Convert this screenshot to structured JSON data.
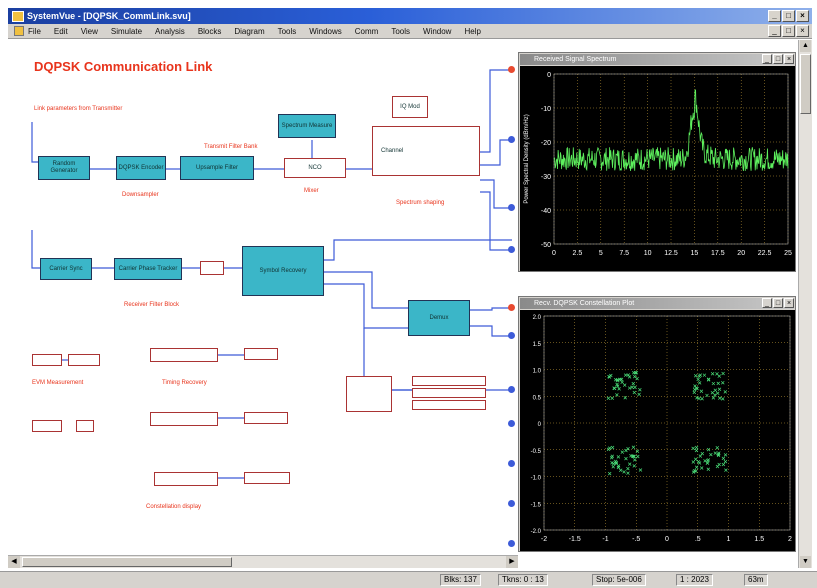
{
  "window": {
    "title": "SystemVue - [DQPSK_CommLink.svu]",
    "min_label": "_",
    "max_label": "□",
    "close_label": "×"
  },
  "menu": [
    "File",
    "Edit",
    "View",
    "Simulate",
    "Analysis",
    "Blocks",
    "Diagram",
    "Tools",
    "Windows",
    "Comm",
    "Tools",
    "Window",
    "Help"
  ],
  "diagram": {
    "title": "DQPSK Communication Link",
    "subtitle": "Link parameters from Transmitter",
    "blocks": [
      {
        "id": "b1",
        "label": "Random\nGenerator"
      },
      {
        "id": "b2",
        "label": "DQPSK\nEncoder"
      },
      {
        "id": "b3",
        "label": "Upsample\nFilter"
      },
      {
        "id": "b4",
        "label": "Spectrum\nMeasure"
      },
      {
        "id": "b5",
        "label": "NCO"
      },
      {
        "id": "b6",
        "label": "IQ Mod"
      },
      {
        "id": "b7",
        "label": "Channel"
      },
      {
        "id": "b8",
        "label": "Carrier\nSync"
      },
      {
        "id": "b9",
        "label": "Carrier Phase\nTracker"
      },
      {
        "id": "b10",
        "label": "Symbol\nRecovery"
      },
      {
        "id": "b11",
        "label": "Demux"
      }
    ],
    "labels": [
      "Transmit Filter Bank",
      "Mixer",
      "Downsampler",
      "Spectrum shaping",
      "Receiver Filter Block",
      "EVM Measurement",
      "Timing Recovery",
      "Constellation display"
    ]
  },
  "spectrum_plot": {
    "title": "Received Signal Spectrum",
    "ylabel": "Power Spectral Density (dBm/Hz)",
    "x_ticks": [
      "0",
      "2.5",
      "5",
      "7.5",
      "10",
      "12.5",
      "15",
      "17.5",
      "20",
      "22.5",
      "25"
    ],
    "y_ticks": [
      "0",
      "-10",
      "-20",
      "-30",
      "-40",
      "-50"
    ],
    "line_color": "#5ef05e",
    "grid_color": "#c9a23a"
  },
  "constellation_plot": {
    "title": "Recv. DQPSK Constellation Plot",
    "x_ticks": [
      "-2",
      "-1.5",
      "-1",
      "-.5",
      "0",
      ".5",
      "1",
      "1.5",
      "2"
    ],
    "y_ticks": [
      "2.0",
      "1.5",
      "1.0",
      "0.5",
      "0",
      "-0.5",
      "-1.0",
      "-1.5",
      "-2.0"
    ],
    "point_color": "#4be07a",
    "grid_color": "#c9a23a"
  },
  "chart_data": [
    {
      "type": "line",
      "title": "Received Signal Spectrum",
      "ylabel": "Power Spectral Density (dBm/Hz)",
      "xlim": [
        0,
        25
      ],
      "ylim": [
        -50,
        0
      ],
      "noise_floor": -25,
      "peak": {
        "x": 15,
        "y": -10
      }
    },
    {
      "type": "scatter",
      "title": "Recv. DQPSK Constellation Plot",
      "xlim": [
        -2,
        2
      ],
      "ylim": [
        -2,
        2
      ],
      "clusters": [
        {
          "x": -0.7,
          "y": 0.7
        },
        {
          "x": 0.7,
          "y": 0.7
        },
        {
          "x": -0.7,
          "y": -0.7
        },
        {
          "x": 0.7,
          "y": -0.7
        }
      ]
    }
  ],
  "status": {
    "blocks": "Blks: 137",
    "tokens": "Tkns: 0 : 13",
    "stop": "Stop: 5e-006",
    "progress": "1 : 2023",
    "zoom": "63m"
  }
}
